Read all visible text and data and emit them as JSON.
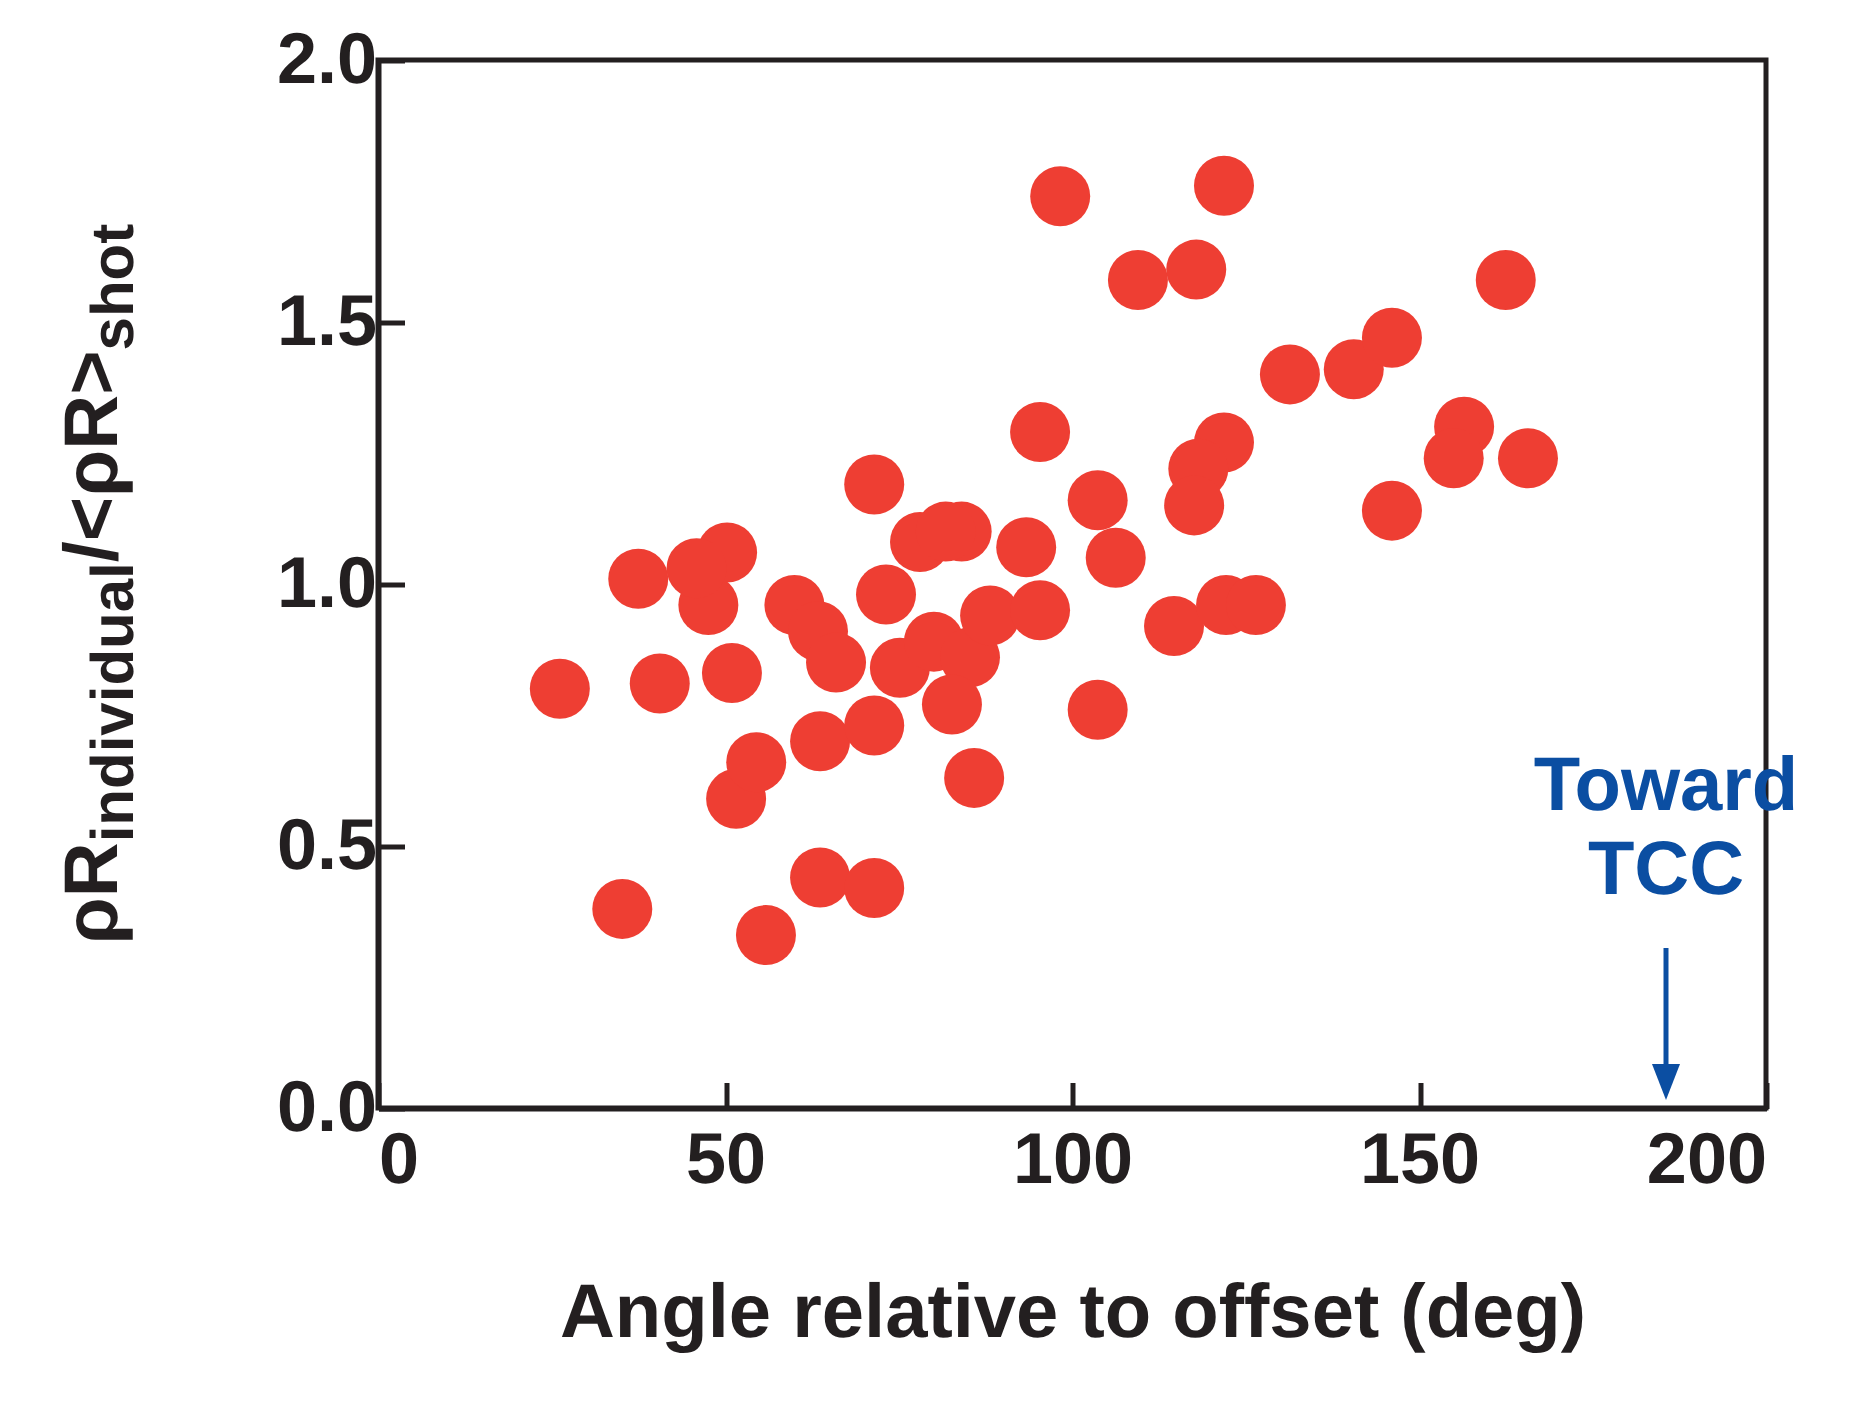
{
  "chart_data": {
    "type": "scatter",
    "xlabel": "Angle relative to offset (deg)",
    "ylabel": "ρR$_{individual}$/<ρR>$_{shot}$",
    "x": [
      26.2,
      35.2,
      37.5,
      40.6,
      47.6,
      50.3,
      51,
      51.6,
      54.5,
      55.9,
      60,
      63.4,
      66,
      63.7,
      63.7,
      71.5,
      71.5,
      71.5,
      73.2,
      75.2,
      78.1,
      84.1,
      93.4,
      95.4,
      98.3,
      80.1,
      85.3,
      88.2,
      95.4,
      82.7,
      85.9,
      121.9,
      109.5,
      117.9,
      162.5,
      131.4,
      140.6,
      146.1,
      156.5,
      155,
      165.7,
      146.1,
      121.9,
      118.2,
      117.6,
      103.7,
      106.3,
      114.7,
      122.2,
      126.5,
      103.7,
      45.9,
      81.8
    ],
    "series": [
      {
        "color": "#ee3e33",
        "values": [
          0.8,
          0.38,
          1.01,
          0.81,
          0.96,
          1.06,
          0.83,
          0.59,
          0.66,
          0.33,
          0.96,
          0.91,
          0.85,
          0.7,
          0.44,
          0.42,
          0.73,
          1.19,
          0.98,
          0.84,
          1.08,
          1.1,
          1.07,
          1.29,
          1.74,
          0.89,
          0.86,
          0.94,
          0.95,
          0.77,
          0.63,
          1.76,
          1.58,
          1.6,
          1.58,
          1.4,
          1.41,
          1.47,
          1.3,
          1.24,
          1.24,
          1.14,
          1.27,
          1.22,
          1.15,
          1.16,
          1.05,
          0.92,
          0.96,
          0.96,
          0.76,
          1.03,
          1.1
        ]
      }
    ],
    "xlim": [
      0,
      200
    ],
    "xticks": [
      0,
      50,
      100,
      150,
      200
    ],
    "ylim": [
      0,
      2
    ],
    "yticks": [
      {
        "value": 0,
        "label": "0.0"
      },
      {
        "value": 0.5,
        "label": "0.5"
      },
      {
        "value": 1,
        "label": "1.0"
      },
      {
        "value": 1.5,
        "label": "1.5"
      },
      {
        "value": 2,
        "label": "2.0"
      }
    ],
    "marker": "circle",
    "annotations": [
      "Toward TCC"
    ]
  }
}
